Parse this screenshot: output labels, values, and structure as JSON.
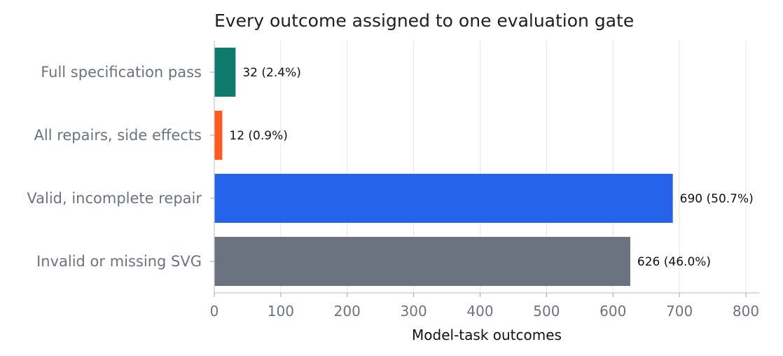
{
  "chart_data": {
    "type": "bar",
    "orientation": "horizontal",
    "title": "Every outcome assigned to one evaluation gate",
    "xlabel": "Model-task outcomes",
    "ylabel": "",
    "xlim": [
      0,
      820
    ],
    "xticks": [
      0,
      100,
      200,
      300,
      400,
      500,
      600,
      700,
      800
    ],
    "grid": "vertical",
    "categories": [
      "Full specification pass",
      "All repairs, side effects",
      "Valid, incomplete repair",
      "Invalid or missing SVG"
    ],
    "values": [
      32,
      12,
      690,
      626
    ],
    "value_labels": [
      "32 (2.4%)",
      "12 (0.9%)",
      "690 (50.7%)",
      "626 (46.0%)"
    ],
    "colors": [
      "#0f7b6c",
      "#ff5a1f",
      "#2563eb",
      "#6b7280"
    ]
  }
}
